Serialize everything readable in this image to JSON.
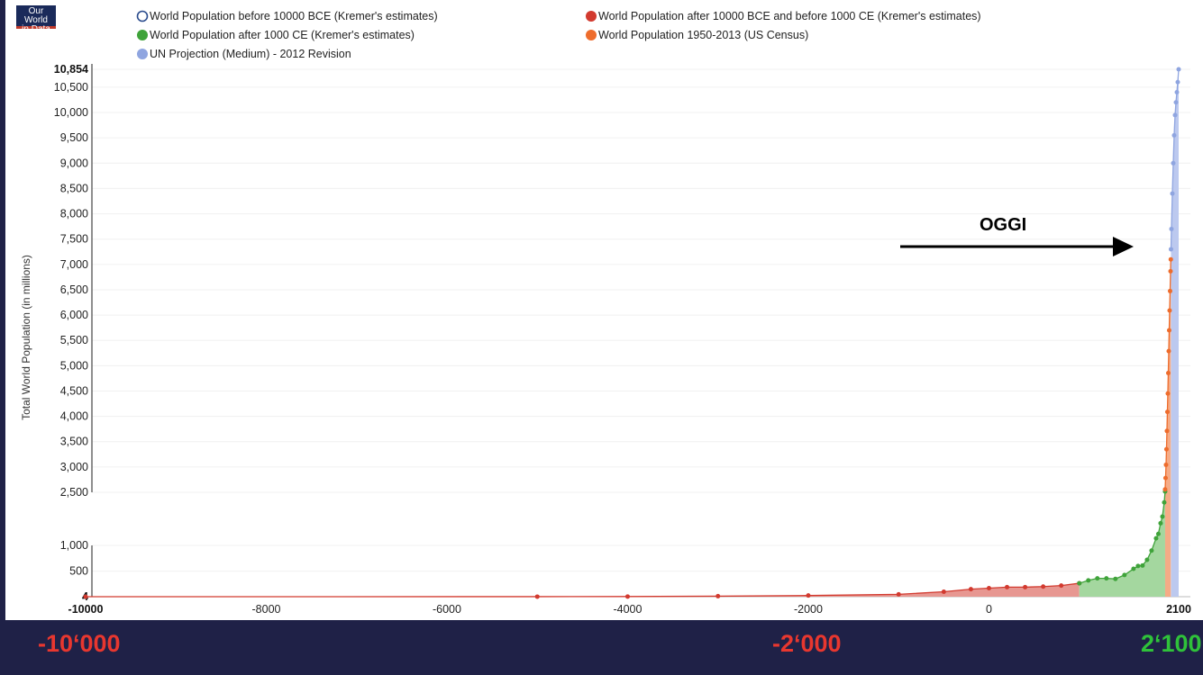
{
  "logo": {
    "line1": "Our World",
    "line2": "in Data"
  },
  "chart_data": {
    "type": "scatter",
    "title": "",
    "xlabel": "",
    "ylabel": "Total World Population (in millions)",
    "xlim": [
      -10000,
      2100
    ],
    "ylim": [
      4,
      10854
    ],
    "y_axis_break": [
      1000,
      2500
    ],
    "x_ticks": [
      -10000,
      -8000,
      -6000,
      -4000,
      -2000,
      0,
      2100
    ],
    "x_tick_labels": [
      "-10000",
      "-8000",
      "-6000",
      "-4000",
      "-2000",
      "0",
      "2100"
    ],
    "y_ticks": [
      4,
      500,
      1000,
      2500,
      3000,
      3500,
      4000,
      4500,
      5000,
      5500,
      6000,
      6500,
      7000,
      7500,
      8000,
      8500,
      9000,
      9500,
      10000,
      10500,
      10854
    ],
    "y_tick_labels": [
      "4",
      "500",
      "1,000",
      "2,500",
      "3,000",
      "3,500",
      "4,000",
      "4,500",
      "5,000",
      "5,500",
      "6,000",
      "6,500",
      "7,000",
      "7,500",
      "8,000",
      "8,500",
      "9,000",
      "9,500",
      "10,000",
      "10,500",
      "10,854"
    ],
    "series": [
      {
        "name": "World Population before 10000 BCE (Kremer's estimates)",
        "color": "#2a4b8d",
        "marker": "open",
        "x": [],
        "y": []
      },
      {
        "name": "World Population after 10000 BCE and before 1000 CE (Kremer's estimates)",
        "color": "#d23a2f",
        "marker": "filled",
        "x": [
          -10000,
          -5000,
          -4000,
          -3000,
          -2000,
          -1000,
          -500,
          -200,
          0,
          200,
          400,
          600,
          800,
          1000
        ],
        "y": [
          4,
          5,
          7,
          14,
          27,
          50,
          100,
          150,
          170,
          190,
          190,
          200,
          220,
          265
        ]
      },
      {
        "name": "World Population after 1000 CE (Kremer's estimates)",
        "color": "#3fa33a",
        "marker": "filled",
        "x": [
          1000,
          1100,
          1200,
          1300,
          1400,
          1500,
          1600,
          1650,
          1700,
          1750,
          1800,
          1850,
          1875,
          1900,
          1920,
          1940,
          1950
        ],
        "y": [
          265,
          320,
          360,
          360,
          350,
          425,
          545,
          600,
          610,
          720,
          900,
          1200,
          1325,
          1625,
          1813,
          2213,
          2516
        ]
      },
      {
        "name": "World Population 1950-2013 (US Census)",
        "color": "#ee6c2c",
        "marker": "filled",
        "x": [
          1950,
          1955,
          1960,
          1965,
          1970,
          1975,
          1980,
          1985,
          1990,
          1995,
          2000,
          2005,
          2010,
          2013
        ],
        "y": [
          2557,
          2782,
          3043,
          3350,
          3712,
          4089,
          4451,
          4855,
          5288,
          5700,
          6090,
          6474,
          6866,
          7100
        ]
      },
      {
        "name": "UN Projection (Medium) - 2012 Revision",
        "color": "#8fa5e0",
        "marker": "filled",
        "x": [
          2015,
          2020,
          2030,
          2040,
          2050,
          2060,
          2070,
          2080,
          2090,
          2100
        ],
        "y": [
          7300,
          7700,
          8400,
          9000,
          9550,
          9950,
          10200,
          10400,
          10600,
          10854
        ]
      }
    ],
    "legend_position": "top",
    "annotations": [
      {
        "text": "OGGI",
        "type": "arrow"
      }
    ]
  },
  "bottom_labels": [
    {
      "text": "-10‘000",
      "color": "#e8372f"
    },
    {
      "text": "-2‘000",
      "color": "#e8372f"
    },
    {
      "text": "2‘100",
      "color": "#2fc23a"
    }
  ]
}
